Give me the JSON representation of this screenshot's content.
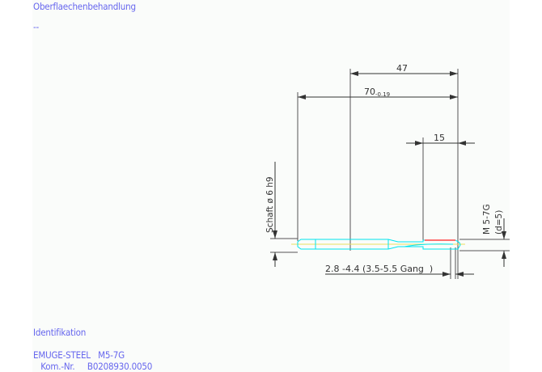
{
  "header": {
    "title": "Oberflaechenbehandlung",
    "value": "--"
  },
  "drawing": {
    "dim_47": "47",
    "dim_70": "70",
    "dim_70_tol": "-0.19",
    "dim_15": "15",
    "shank_label": "Schaft ø 6 h9",
    "thread_label": "M 5-7G",
    "thread_sub": "(d=5)",
    "pitch_label": "2.8 -4.4 (3.5-5.5 Gang  )",
    "colors": {
      "dimension": "#333333",
      "tool": "#00e5ee",
      "thread": "#ff2020",
      "axis": "#e8e060",
      "text": "#6666ee"
    }
  },
  "footer": {
    "title": "Identifikation",
    "line1": "EMUGE-STEEL   M5-7G",
    "line2": "   Kom.-Nr.     B0208930.0050"
  }
}
